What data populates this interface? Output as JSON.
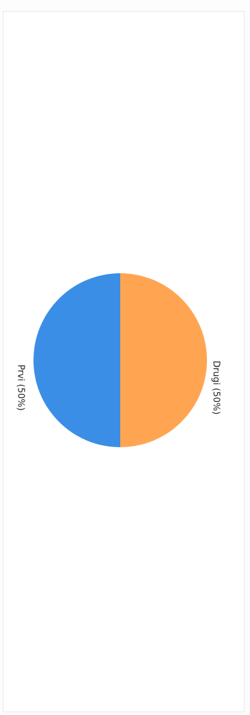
{
  "chart_data": {
    "type": "pie",
    "title": "",
    "series": [
      {
        "label": "Drugi (50%)",
        "value": 50,
        "color": "#ffa552"
      },
      {
        "label": "Prvi (50%)",
        "value": 50,
        "color": "#3a8ee6"
      }
    ],
    "legend": "none",
    "orientation": "rotated-90-clockwise"
  }
}
